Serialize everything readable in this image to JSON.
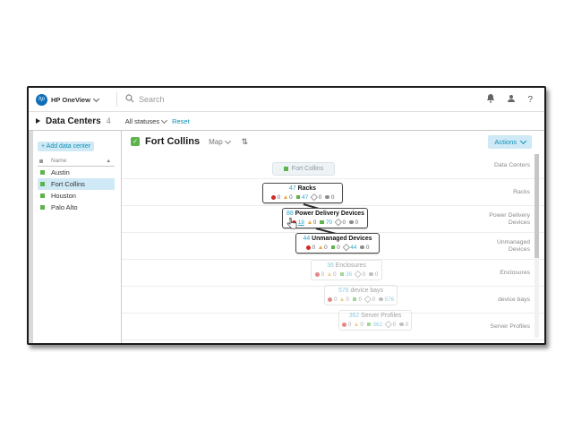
{
  "top_bar": {
    "brand": "HP OneView",
    "search_placeholder": "Search"
  },
  "filter_bar": {
    "title": "Data Centers",
    "count": "4",
    "status_filter": "All statuses",
    "reset_link": "Reset"
  },
  "sidebar": {
    "add_button_label": "+ Add data center",
    "name_header": "Name",
    "sort_arrow": "▲",
    "items": [
      {
        "label": "Austin",
        "status": "ok",
        "selected": false
      },
      {
        "label": "Fort Collins",
        "status": "ok",
        "selected": true
      },
      {
        "label": "Houston",
        "status": "ok",
        "selected": false
      },
      {
        "label": "Palo Alto",
        "status": "ok",
        "selected": false
      }
    ]
  },
  "main_header": {
    "status": "ok",
    "status_glyph": "✓",
    "title": "Fort Collins",
    "view_label": "Map",
    "collapse_icon_glyph": "⇅",
    "actions_label": "Actions"
  },
  "map": {
    "row_labels": [
      "Data Centers",
      "Racks",
      "Power Delivery Devices",
      "Unmanaged Devices",
      "Enclosures",
      "device bays",
      "Server Profiles"
    ],
    "nodes": [
      {
        "kind": "context",
        "label": "Fort Collins",
        "status": "ok"
      },
      {
        "kind": "active",
        "count": "47",
        "name": "Racks",
        "statuses": [
          {
            "icon": "critical",
            "value": "0"
          },
          {
            "icon": "warning",
            "value": "0"
          },
          {
            "icon": "ok",
            "value": "47"
          },
          {
            "icon": "disabled",
            "value": "0"
          },
          {
            "icon": "unknown",
            "value": "0"
          }
        ]
      },
      {
        "kind": "active",
        "count": "88",
        "name": "Power Delivery Devices",
        "statuses": [
          {
            "icon": "critical",
            "value": "18",
            "hovered": true
          },
          {
            "icon": "warning",
            "value": "0"
          },
          {
            "icon": "ok",
            "value": "70"
          },
          {
            "icon": "disabled",
            "value": "0"
          },
          {
            "icon": "unknown",
            "value": "0"
          }
        ]
      },
      {
        "kind": "active",
        "count": "44",
        "name": "Unmanaged Devices",
        "statuses": [
          {
            "icon": "critical",
            "value": "0"
          },
          {
            "icon": "warning",
            "value": "0"
          },
          {
            "icon": "ok",
            "value": "0"
          },
          {
            "icon": "disabled",
            "value": "44"
          },
          {
            "icon": "unknown",
            "value": "0"
          }
        ]
      },
      {
        "kind": "faded",
        "count": "36",
        "name": "Enclosures",
        "statuses": [
          {
            "icon": "critical",
            "value": "0"
          },
          {
            "icon": "warning",
            "value": "0"
          },
          {
            "icon": "ok",
            "value": "36"
          },
          {
            "icon": "disabled",
            "value": "0"
          },
          {
            "icon": "unknown",
            "value": "0"
          }
        ]
      },
      {
        "kind": "faded",
        "count": "576",
        "name": "device bays",
        "statuses": [
          {
            "icon": "critical",
            "value": "0"
          },
          {
            "icon": "warning",
            "value": "0"
          },
          {
            "icon": "ok",
            "value": "0"
          },
          {
            "icon": "disabled",
            "value": "0"
          },
          {
            "icon": "unknown",
            "value": "576"
          }
        ]
      },
      {
        "kind": "faded",
        "count": "362",
        "name": "Server Profiles",
        "statuses": [
          {
            "icon": "critical",
            "value": "0"
          },
          {
            "icon": "warning",
            "value": "0"
          },
          {
            "icon": "ok",
            "value": "362"
          },
          {
            "icon": "disabled",
            "value": "0"
          },
          {
            "icon": "unknown",
            "value": "0"
          }
        ]
      }
    ]
  },
  "colors": {
    "accent_teal": "#0f8fb4",
    "link_teal": "#2fa3c6",
    "status_ok": "#5fb34d",
    "status_critical": "#cf2a27",
    "status_warning": "#e6a63c",
    "status_disabled": "#a0a0a0",
    "selected_bg": "#cfe9f6",
    "hp_logo_blue": "#0e6eb8"
  }
}
